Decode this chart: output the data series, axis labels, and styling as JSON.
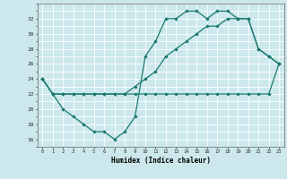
{
  "xlabel": "Humidex (Indice chaleur)",
  "bg_color": "#cce8ec",
  "grid_color": "#ffffff",
  "line_color": "#1a7a6e",
  "xlim": [
    -0.5,
    23.5
  ],
  "ylim": [
    15.0,
    34.0
  ],
  "xticks": [
    0,
    1,
    2,
    3,
    4,
    5,
    6,
    7,
    8,
    9,
    10,
    11,
    12,
    13,
    14,
    15,
    16,
    17,
    18,
    19,
    20,
    21,
    22,
    23
  ],
  "yticks": [
    16,
    18,
    20,
    22,
    24,
    26,
    28,
    30,
    32
  ],
  "line1_x": [
    0,
    1,
    2,
    3,
    4,
    5,
    6,
    7,
    8,
    9,
    10,
    11,
    12,
    13,
    14,
    15,
    16,
    17,
    18,
    19,
    20,
    21,
    22,
    23
  ],
  "line1_y": [
    24,
    22,
    20,
    19,
    18,
    17,
    17,
    16,
    17,
    19,
    27,
    29,
    32,
    32,
    33,
    33,
    32,
    33,
    33,
    32,
    32,
    28,
    27,
    26
  ],
  "line2_x": [
    0,
    1,
    2,
    3,
    4,
    5,
    6,
    7,
    8,
    9,
    10,
    11,
    12,
    13,
    14,
    15,
    16,
    17,
    18,
    19,
    20,
    21,
    22,
    23
  ],
  "line2_y": [
    24,
    22,
    22,
    22,
    22,
    22,
    22,
    22,
    22,
    23,
    24,
    25,
    27,
    28,
    29,
    30,
    31,
    31,
    32,
    32,
    32,
    28,
    27,
    26
  ],
  "line3_x": [
    0,
    1,
    2,
    3,
    4,
    5,
    6,
    7,
    8,
    9,
    10,
    11,
    12,
    13,
    14,
    15,
    16,
    17,
    18,
    19,
    20,
    21,
    22,
    23
  ],
  "line3_y": [
    24,
    22,
    22,
    22,
    22,
    22,
    22,
    22,
    22,
    22,
    22,
    22,
    22,
    22,
    22,
    22,
    22,
    22,
    22,
    22,
    22,
    22,
    22,
    26
  ]
}
